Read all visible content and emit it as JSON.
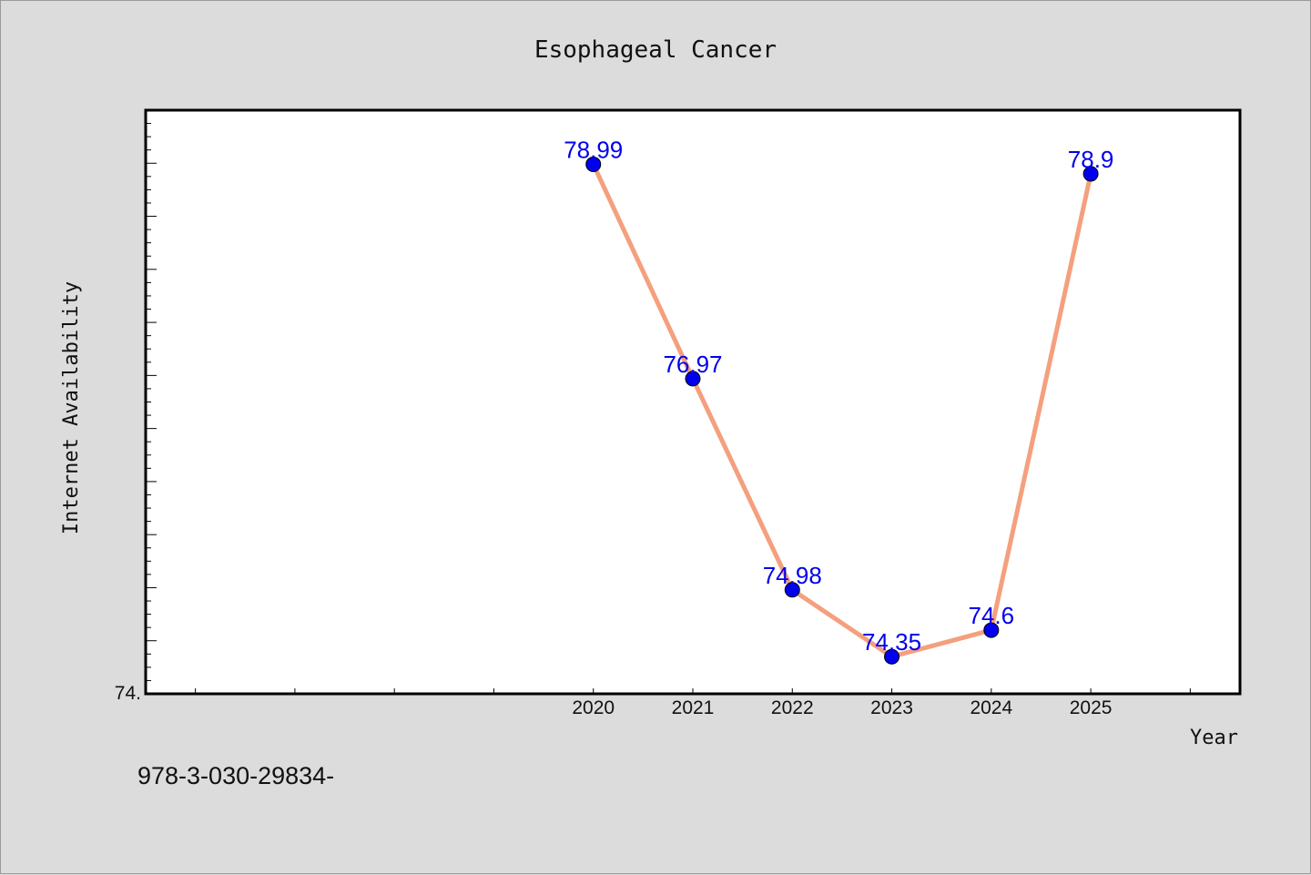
{
  "chart_data": {
    "type": "line",
    "title": "Esophageal Cancer",
    "xlabel": "Year",
    "ylabel": "Internet Availability",
    "categories": [
      "2020",
      "2021",
      "2022",
      "2023",
      "2024",
      "2025"
    ],
    "values": [
      78.99,
      76.97,
      74.98,
      74.35,
      74.6,
      78.9
    ],
    "data_labels": [
      "78.99",
      "76.97",
      "74.98",
      "74.35",
      "74.6",
      "78.9"
    ],
    "y_tick_labels": [
      "74."
    ],
    "ylim": [
      74.0,
      79.5
    ],
    "xlim": [
      2015.5,
      2026.5
    ],
    "grid": false,
    "legend": "none",
    "line_color": "#f4a07e",
    "marker_color": "#0000ee"
  },
  "footer": {
    "code": "978-3-030-29834-"
  }
}
